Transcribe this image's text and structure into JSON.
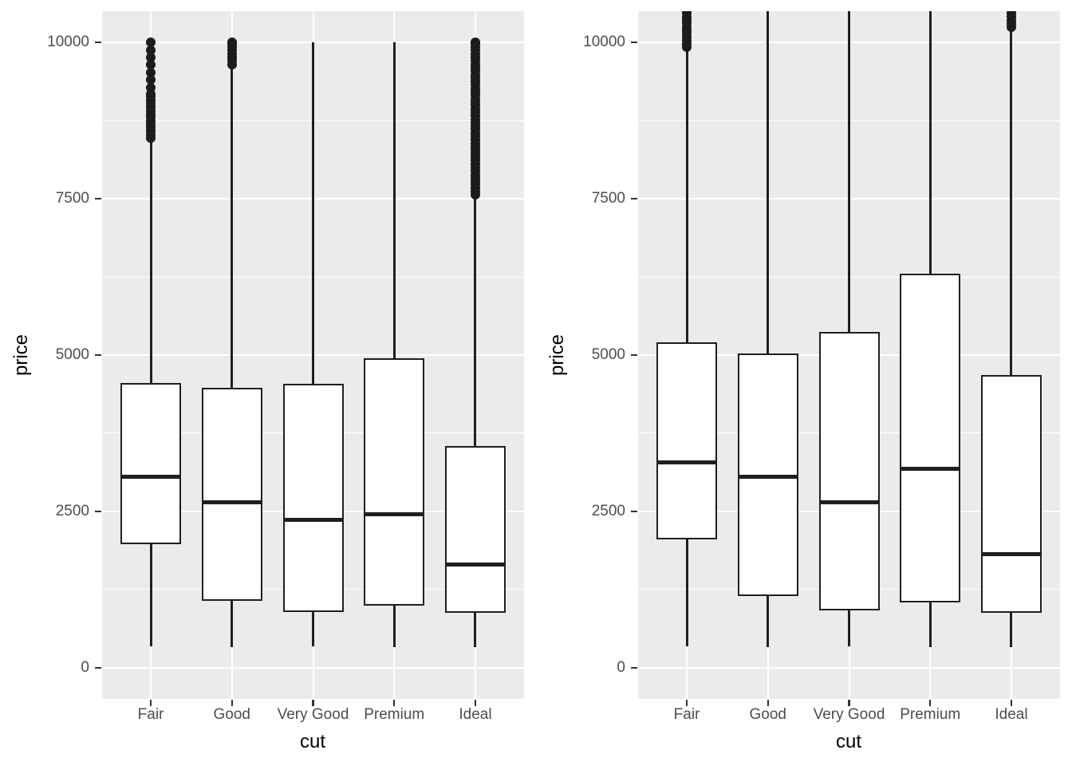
{
  "figure": {
    "background": "#ffffff",
    "panel_background": "#ebebeb",
    "gridline_color": "#ffffff",
    "box_line_color": "#1f1f1f",
    "tick_label_color": "#4d4d4d",
    "axis_title_color": "#000000"
  },
  "chart_data": [
    {
      "type": "boxplot",
      "title": "",
      "xlabel": "cut",
      "ylabel": "price",
      "categories": [
        "Fair",
        "Good",
        "Very Good",
        "Premium",
        "Ideal"
      ],
      "y_ticks": [
        0,
        2500,
        5000,
        7500,
        10000
      ],
      "ylim": [
        -500,
        10500
      ],
      "grid": "major+minor, white on grey panel",
      "legend": "none",
      "boxes": [
        {
          "category": "Fair",
          "whisker_low": 337,
          "q1": 1975,
          "median": 3050,
          "q3": 4550,
          "whisker_high": 8410,
          "outliers": [
            9280,
            9400,
            9520,
            9640,
            9760,
            9880,
            10000
          ],
          "outlier_runs": [
            [
              8470,
              9170
            ]
          ]
        },
        {
          "category": "Good",
          "whisker_low": 327,
          "q1": 1065,
          "median": 2640,
          "q3": 4480,
          "whisker_high": 9640,
          "outliers": [],
          "outlier_runs": [
            [
              9650,
              10000
            ]
          ]
        },
        {
          "category": "Very Good",
          "whisker_low": 336,
          "q1": 890,
          "median": 2360,
          "q3": 4540,
          "whisker_high": 10000,
          "outliers": [],
          "outlier_runs": []
        },
        {
          "category": "Premium",
          "whisker_low": 326,
          "q1": 990,
          "median": 2450,
          "q3": 4950,
          "whisker_high": 10000,
          "outliers": [],
          "outlier_runs": []
        },
        {
          "category": "Ideal",
          "whisker_low": 326,
          "q1": 880,
          "median": 1650,
          "q3": 3545,
          "whisker_high": 7540,
          "outliers": [],
          "outlier_runs": [
            [
              7560,
              10000
            ]
          ]
        }
      ]
    },
    {
      "type": "boxplot",
      "title": "",
      "xlabel": "cut",
      "ylabel": "price",
      "categories": [
        "Fair",
        "Good",
        "Very Good",
        "Premium",
        "Ideal"
      ],
      "y_ticks": [
        0,
        2500,
        5000,
        7500,
        10000
      ],
      "ylim": [
        -500,
        10500
      ],
      "grid": "major+minor, white on grey panel",
      "legend": "none",
      "boxes": [
        {
          "category": "Fair",
          "whisker_low": 337,
          "q1": 2050,
          "median": 3282,
          "q3": 5206,
          "whisker_high": 9890,
          "outliers": [],
          "outlier_runs": [
            [
              9920,
              10560
            ]
          ]
        },
        {
          "category": "Good",
          "whisker_low": 327,
          "q1": 1145,
          "median": 3050,
          "q3": 5028,
          "whisker_high": 10852,
          "outliers": [],
          "outlier_runs": []
        },
        {
          "category": "Very Good",
          "whisker_low": 336,
          "q1": 912,
          "median": 2648,
          "q3": 5373,
          "whisker_high": 12064,
          "outliers": [],
          "outlier_runs": []
        },
        {
          "category": "Premium",
          "whisker_low": 326,
          "q1": 1046,
          "median": 3185,
          "q3": 6296,
          "whisker_high": 14171,
          "outliers": [],
          "outlier_runs": []
        },
        {
          "category": "Ideal",
          "whisker_low": 326,
          "q1": 878,
          "median": 1810,
          "q3": 4678,
          "whisker_high": 10360,
          "outliers": [],
          "outlier_runs": [
            [
              10240,
              10560
            ]
          ]
        }
      ]
    }
  ]
}
